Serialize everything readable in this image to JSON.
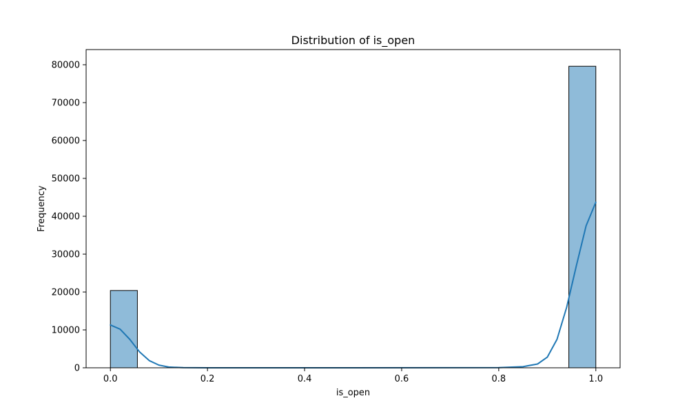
{
  "chart_data": {
    "type": "bar",
    "title": "Distribution of is_open",
    "xlabel": "is_open",
    "ylabel": "Frequency",
    "xlim": [
      -0.05,
      1.05
    ],
    "ylim": [
      0,
      84000
    ],
    "x_ticks": [
      0.0,
      0.2,
      0.4,
      0.6,
      0.8,
      1.0
    ],
    "x_tick_labels": [
      "0.0",
      "0.2",
      "0.4",
      "0.6",
      "0.8",
      "1.0"
    ],
    "y_ticks": [
      0,
      10000,
      20000,
      30000,
      40000,
      50000,
      60000,
      70000,
      80000
    ],
    "y_tick_labels": [
      "0",
      "10000",
      "20000",
      "30000",
      "40000",
      "50000",
      "60000",
      "70000",
      "80000"
    ],
    "bins": [
      {
        "x_start": 0.0,
        "x_end": 0.0556,
        "count": 20400
      },
      {
        "x_start": 0.9444,
        "x_end": 1.0,
        "count": 79600
      }
    ],
    "kde": {
      "x": [
        0.0,
        0.02,
        0.04,
        0.06,
        0.08,
        0.1,
        0.12,
        0.15,
        0.2,
        0.5,
        0.8,
        0.85,
        0.88,
        0.9,
        0.92,
        0.94,
        0.96,
        0.98,
        1.0
      ],
      "y": [
        11300,
        10200,
        7500,
        4200,
        1900,
        700,
        200,
        40,
        0,
        0,
        50,
        300,
        1000,
        2800,
        7500,
        16000,
        27000,
        37500,
        43700
      ]
    },
    "grid": false,
    "colors": {
      "bar_fill": "#8fbbd9",
      "bar_edge": "#000000",
      "kde_line": "#1f77b4"
    }
  }
}
